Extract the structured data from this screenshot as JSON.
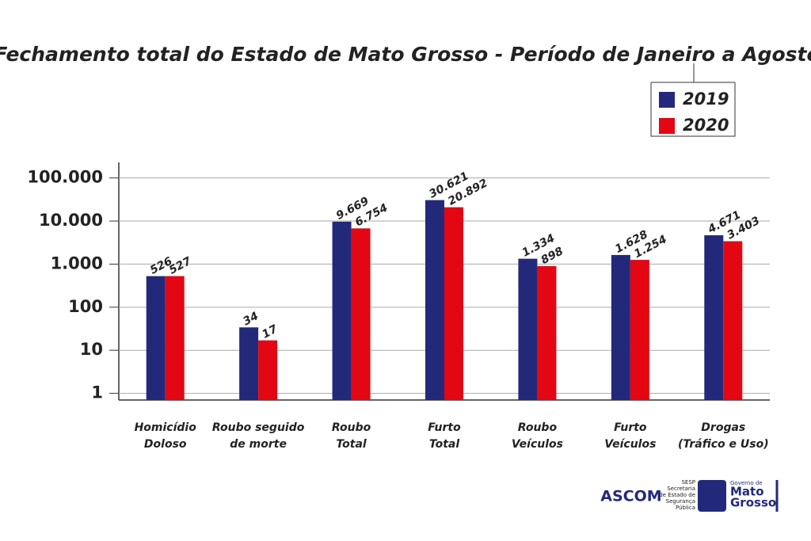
{
  "chart_data": {
    "type": "bar",
    "title": "Fechamento total do Estado de Mato Grosso - Período de Janeiro a Agosto",
    "categories": [
      [
        "Homicídio",
        "Doloso"
      ],
      [
        "Roubo seguido",
        "de morte"
      ],
      [
        "Roubo",
        "Total"
      ],
      [
        "Furto",
        "Total"
      ],
      [
        "Roubo",
        "Veículos"
      ],
      [
        "Furto",
        "Veículos"
      ],
      [
        "Drogas",
        "(Tráfico e Uso)"
      ]
    ],
    "series": [
      {
        "name": "2019",
        "color": "#23297a",
        "values": [
          526,
          34,
          9669,
          30621,
          1334,
          1628,
          4671
        ],
        "value_labels": [
          "526",
          "34",
          "9.669",
          "30.621",
          "1.334",
          "1.628",
          "4.671"
        ]
      },
      {
        "name": "2020",
        "color": "#e30613",
        "values": [
          527,
          17,
          6754,
          20892,
          898,
          1254,
          3403
        ],
        "value_labels": [
          "527",
          "17",
          "6.754",
          "20.892",
          "898",
          "1.254",
          "3.403"
        ]
      }
    ],
    "log_scale": true,
    "ylim": [
      0.7,
      230000
    ],
    "yticks": [
      1,
      10,
      100,
      {
        "value": 1000,
        "label": "1.000"
      },
      {
        "value": 10000,
        "label": "10.000"
      },
      {
        "value": 100000,
        "label": "100.000"
      }
    ],
    "grid": true,
    "legend": "top-right"
  },
  "footer": {
    "agency": "ASCOM",
    "sesp": [
      "SESP",
      "Secretaria",
      "de Estado de",
      "Segurança",
      "Pública"
    ],
    "government": [
      "Governo de",
      "Mato",
      "Grosso"
    ]
  }
}
